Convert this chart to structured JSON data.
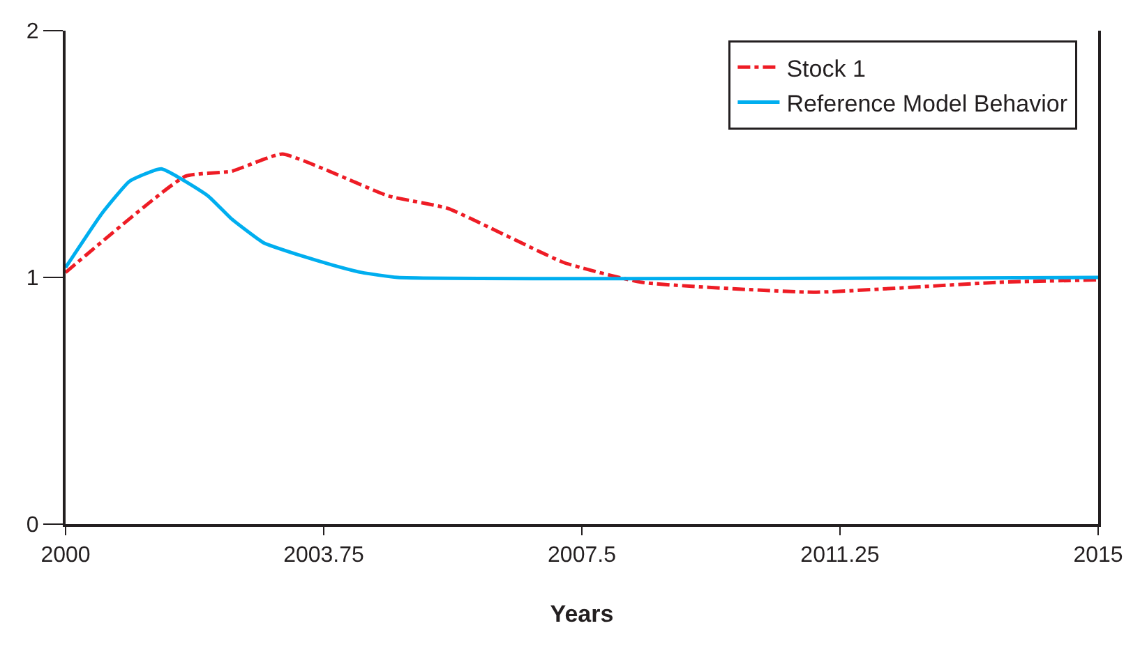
{
  "chart_data": {
    "type": "line",
    "xlabel": "Years",
    "xlim": [
      2000,
      2015
    ],
    "xticks": [
      2000,
      2003.75,
      2007.5,
      2011.25,
      2015
    ],
    "ylim": [
      0,
      2
    ],
    "yticks": [
      0,
      1,
      2
    ],
    "legend": "top right",
    "marker": "none",
    "series": [
      {
        "name": "Stock 1",
        "color": "#ee1c25",
        "line_style": "dashdot",
        "x": [
          2000,
          2001.74,
          2002.41,
          2003.15,
          2004.69,
          2005.55,
          2007.24,
          2008.37,
          2010.86,
          2013.54,
          2015
        ],
        "values": [
          1.02,
          1.41,
          1.43,
          1.5,
          1.33,
          1.28,
          1.06,
          0.98,
          0.94,
          0.98,
          0.99
        ]
      },
      {
        "name": "Reference Model Behavior",
        "color": "#00aeef",
        "line_style": "solid",
        "x": [
          2000,
          2000.53,
          2000.93,
          2001.39,
          2002.07,
          2002.4,
          2002.88,
          2003.4,
          2003.88,
          2004.3,
          2004.82,
          2015
        ],
        "values": [
          1.04,
          1.26,
          1.39,
          1.44,
          1.33,
          1.24,
          1.14,
          1.09,
          1.05,
          1.02,
          1.0,
          1.0
        ]
      }
    ]
  }
}
